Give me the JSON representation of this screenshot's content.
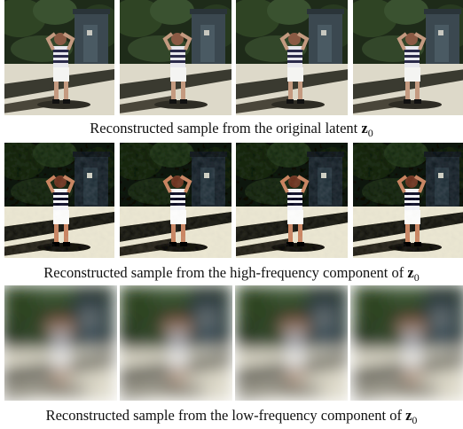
{
  "captions": [
    {
      "text": "Reconstructed sample from the original latent",
      "symbol": "z",
      "subscript": "0"
    },
    {
      "text": "Reconstructed sample from the high-frequency component of",
      "symbol": "z",
      "subscript": "0"
    },
    {
      "text": "Reconstructed sample from the low-frequency component of",
      "symbol": "z",
      "subscript": "0"
    }
  ]
}
